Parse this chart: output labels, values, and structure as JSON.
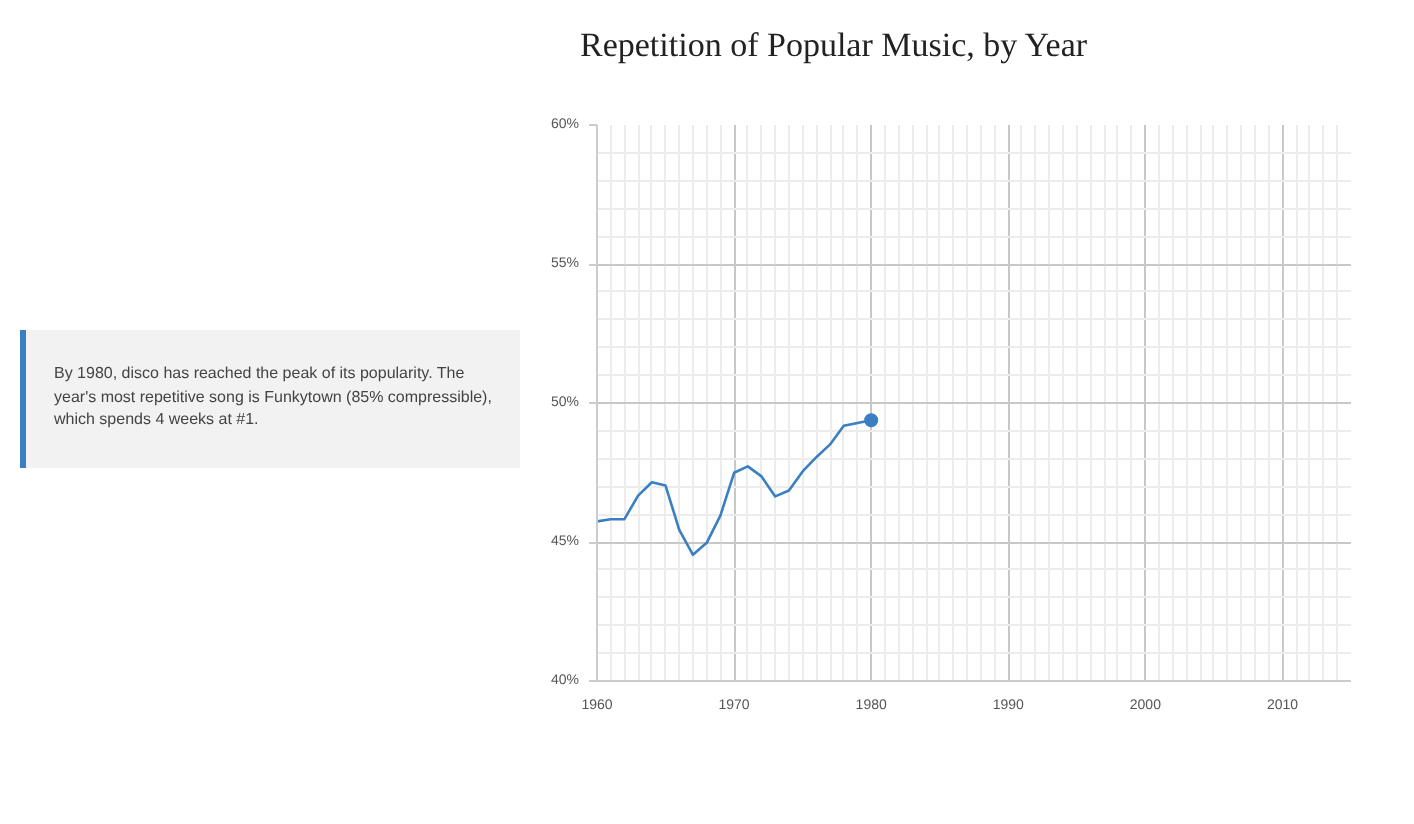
{
  "chart_data": {
    "type": "line",
    "title": "Repetition of Popular Music, by Year",
    "x": [
      1960,
      1961,
      1962,
      1963,
      1964,
      1965,
      1966,
      1967,
      1968,
      1969,
      1970,
      1971,
      1972,
      1973,
      1974,
      1975,
      1976,
      1977,
      1978,
      1979,
      1980
    ],
    "series": [
      {
        "color": "#3a7fc1",
        "values": [
          45.74,
          45.82,
          45.82,
          46.67,
          47.15,
          47.03,
          45.44,
          44.54,
          44.97,
          45.95,
          47.49,
          47.72,
          47.36,
          46.64,
          46.85,
          47.54,
          48.05,
          48.51,
          49.18,
          49.28,
          49.38
        ]
      },
      {
        "type": "scatter",
        "color": "#3a7fc1",
        "x": [
          1980
        ],
        "values": [
          49.38
        ]
      }
    ],
    "xlim": [
      1960,
      2015
    ],
    "xticks": [
      1960,
      1970,
      1980,
      1990,
      2000,
      2010
    ],
    "ylim": [
      40,
      60
    ],
    "yticks": [
      {
        "value": 40,
        "label": "40%"
      },
      {
        "value": 45,
        "label": "45%"
      },
      {
        "value": 50,
        "label": "50%"
      },
      {
        "value": 55,
        "label": "55%"
      },
      {
        "value": 60,
        "label": "60%"
      }
    ],
    "grid": true,
    "line_style": "solid",
    "annotations": [
      "By 1980, disco has reached the peak of its popularity. The year's most repetitive song is Funkytown (85% compressible), which spends 4 weeks at #1."
    ]
  }
}
